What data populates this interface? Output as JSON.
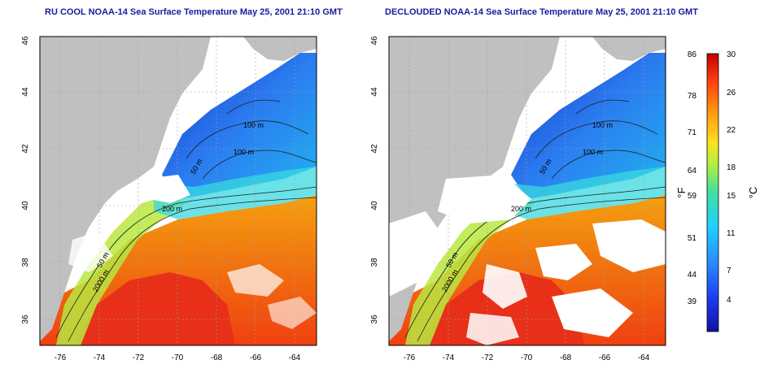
{
  "titles": {
    "left": "RU COOL NOAA-14 Sea Surface Temperature May 25, 2001 21:10 GMT",
    "right": "DECLOUDED NOAA-14 Sea Surface Temperature May 25, 2001 21:10 GMT"
  },
  "axes": {
    "lon_ticks": [
      "-76",
      "-74",
      "-72",
      "-70",
      "-68",
      "-66",
      "-64"
    ],
    "lat_ticks": [
      "36",
      "38",
      "40",
      "42",
      "44",
      "46"
    ]
  },
  "contour_labels": [
    "100 m",
    "100 m",
    "50 m",
    "200 m",
    "50 m",
    "2000 m"
  ],
  "colorbar": {
    "f_label": "°F",
    "c_label": "°C",
    "f_ticks": [
      "86",
      "78",
      "71",
      "64",
      "59",
      "51",
      "44",
      "39"
    ],
    "c_ticks": [
      "30",
      "26",
      "22",
      "18",
      "15",
      "11",
      "7",
      "4"
    ]
  },
  "colors": {
    "land": "#c0c0c0",
    "cold": "#1f4fd8",
    "warm": "#f07010",
    "title": "#1a1aa0"
  }
}
